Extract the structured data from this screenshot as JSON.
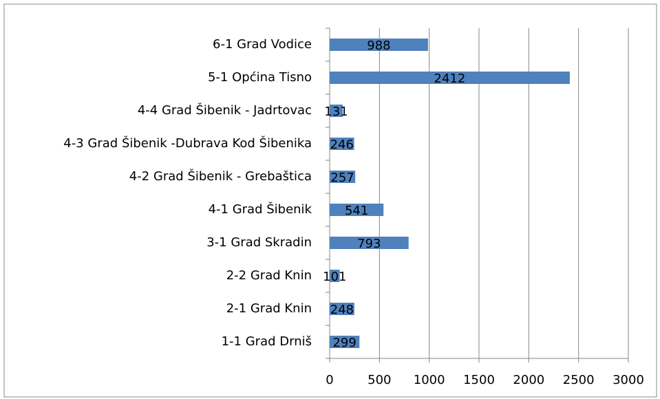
{
  "chart_data": {
    "type": "bar",
    "orientation": "horizontal",
    "categories": [
      "6-1 Grad Vodice",
      "5-1 Općina Tisno",
      "4-4 Grad Šibenik - Jadrtovac",
      "4-3 Grad Šibenik -Dubrava Kod Šibenika",
      "4-2 Grad Šibenik - Grebaštica",
      "4-1 Grad Šibenik",
      "3-1 Grad Skradin",
      "2-2 Grad Knin",
      "2-1 Grad Knin",
      "1-1 Grad Drniš"
    ],
    "values": [
      988,
      2412,
      131,
      246,
      257,
      541,
      793,
      101,
      248,
      299
    ],
    "color": "#4f81bd",
    "xlim": [
      0,
      3000
    ],
    "xticks": [
      0,
      500,
      1000,
      1500,
      2000,
      2500,
      3000
    ],
    "grid": true
  }
}
